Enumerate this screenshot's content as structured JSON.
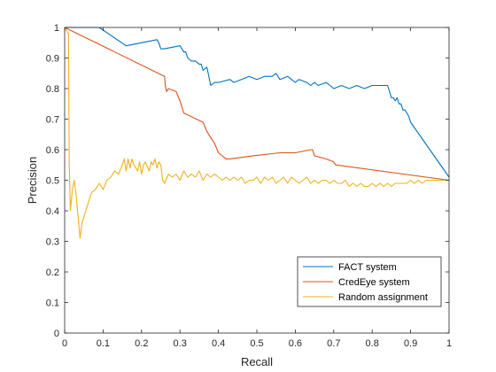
{
  "chart_data": {
    "type": "line",
    "title": "",
    "xlabel": "Recall",
    "ylabel": "Precision",
    "xlim": [
      0,
      1
    ],
    "ylim": [
      0,
      1
    ],
    "x_ticks": [
      0,
      0.1,
      0.2,
      0.3,
      0.4,
      0.5,
      0.6,
      0.7,
      0.8,
      0.9,
      1
    ],
    "x_tick_labels": [
      "0",
      "0.1",
      "0.2",
      "0.3",
      "0.4",
      "0.5",
      "0.6",
      "0.7",
      "0.8",
      "0.9",
      "1"
    ],
    "y_ticks": [
      0,
      0.1,
      0.2,
      0.3,
      0.4,
      0.5,
      0.6,
      0.7,
      0.8,
      0.9,
      1
    ],
    "y_tick_labels": [
      "0",
      "0.1",
      "0.2",
      "0.3",
      "0.4",
      "0.5",
      "0.6",
      "0.7",
      "0.8",
      "0.9",
      "1"
    ],
    "grid": false,
    "legend_position": "bottom-right",
    "series": [
      {
        "name": "FACT system",
        "color": "#0072BD",
        "x": [
          0,
          0.09,
          0.16,
          0.24,
          0.245,
          0.25,
          0.26,
          0.3,
          0.31,
          0.315,
          0.32,
          0.33,
          0.34,
          0.35,
          0.355,
          0.36,
          0.37,
          0.375,
          0.38,
          0.39,
          0.4,
          0.43,
          0.44,
          0.46,
          0.48,
          0.5,
          0.52,
          0.54,
          0.55,
          0.56,
          0.58,
          0.6,
          0.61,
          0.63,
          0.64,
          0.65,
          0.66,
          0.68,
          0.69,
          0.7,
          0.72,
          0.74,
          0.76,
          0.78,
          0.8,
          0.82,
          0.84,
          0.85,
          0.855,
          0.86,
          0.865,
          0.87,
          0.875,
          0.88,
          0.885,
          0.89,
          0.895,
          0.9,
          1.0
        ],
        "y": [
          1,
          1,
          0.94,
          0.96,
          0.95,
          0.93,
          0.93,
          0.94,
          0.92,
          0.92,
          0.9,
          0.89,
          0.89,
          0.88,
          0.88,
          0.86,
          0.87,
          0.84,
          0.81,
          0.82,
          0.82,
          0.83,
          0.82,
          0.83,
          0.84,
          0.83,
          0.84,
          0.84,
          0.85,
          0.83,
          0.84,
          0.82,
          0.83,
          0.82,
          0.81,
          0.82,
          0.81,
          0.82,
          0.81,
          0.8,
          0.81,
          0.8,
          0.81,
          0.8,
          0.81,
          0.81,
          0.81,
          0.77,
          0.77,
          0.76,
          0.77,
          0.75,
          0.75,
          0.73,
          0.73,
          0.72,
          0.71,
          0.69,
          0.51
        ]
      },
      {
        "name": "CredEye system",
        "color": "#D95319",
        "x": [
          0,
          0.26,
          0.262,
          0.265,
          0.27,
          0.29,
          0.3,
          0.31,
          0.36,
          0.37,
          0.38,
          0.39,
          0.4,
          0.42,
          0.43,
          0.49,
          0.56,
          0.6,
          0.64,
          0.645,
          0.65,
          0.68,
          0.7,
          0.705,
          1.0
        ],
        "y": [
          1,
          0.84,
          0.81,
          0.79,
          0.8,
          0.79,
          0.76,
          0.72,
          0.69,
          0.66,
          0.64,
          0.62,
          0.59,
          0.57,
          0.57,
          0.58,
          0.59,
          0.59,
          0.6,
          0.6,
          0.58,
          0.57,
          0.56,
          0.55,
          0.5
        ]
      },
      {
        "name": "Random assignment",
        "color": "#EDB120",
        "x": [
          0,
          0.01,
          0.012,
          0.015,
          0.02,
          0.025,
          0.03,
          0.035,
          0.04,
          0.045,
          0.05,
          0.06,
          0.07,
          0.08,
          0.09,
          0.1,
          0.11,
          0.12,
          0.13,
          0.14,
          0.15,
          0.155,
          0.16,
          0.165,
          0.17,
          0.175,
          0.18,
          0.19,
          0.195,
          0.2,
          0.205,
          0.21,
          0.22,
          0.225,
          0.23,
          0.235,
          0.24,
          0.245,
          0.25,
          0.255,
          0.26,
          0.27,
          0.28,
          0.29,
          0.3,
          0.31,
          0.32,
          0.33,
          0.34,
          0.35,
          0.36,
          0.37,
          0.38,
          0.39,
          0.4,
          0.41,
          0.42,
          0.43,
          0.44,
          0.45,
          0.46,
          0.47,
          0.48,
          0.49,
          0.5,
          0.51,
          0.52,
          0.53,
          0.54,
          0.55,
          0.56,
          0.57,
          0.58,
          0.59,
          0.6,
          0.61,
          0.62,
          0.63,
          0.64,
          0.65,
          0.66,
          0.67,
          0.68,
          0.69,
          0.7,
          0.71,
          0.72,
          0.73,
          0.74,
          0.75,
          0.76,
          0.77,
          0.78,
          0.79,
          0.8,
          0.81,
          0.82,
          0.83,
          0.84,
          0.85,
          0.86,
          0.87,
          0.88,
          0.89,
          0.9,
          0.91,
          0.92,
          0.93,
          0.94,
          0.95,
          0.96,
          0.97,
          0.98,
          0.99,
          1.0
        ],
        "y": [
          1,
          0.98,
          0.55,
          0.4,
          0.47,
          0.5,
          0.45,
          0.38,
          0.31,
          0.36,
          0.38,
          0.42,
          0.46,
          0.47,
          0.49,
          0.47,
          0.5,
          0.51,
          0.53,
          0.52,
          0.55,
          0.57,
          0.53,
          0.57,
          0.54,
          0.57,
          0.55,
          0.53,
          0.56,
          0.52,
          0.55,
          0.56,
          0.53,
          0.56,
          0.55,
          0.57,
          0.54,
          0.56,
          0.55,
          0.5,
          0.49,
          0.52,
          0.51,
          0.52,
          0.5,
          0.53,
          0.51,
          0.52,
          0.51,
          0.53,
          0.5,
          0.52,
          0.51,
          0.52,
          0.51,
          0.5,
          0.51,
          0.5,
          0.51,
          0.5,
          0.51,
          0.49,
          0.5,
          0.5,
          0.51,
          0.49,
          0.51,
          0.5,
          0.51,
          0.49,
          0.5,
          0.51,
          0.49,
          0.51,
          0.5,
          0.49,
          0.5,
          0.51,
          0.49,
          0.5,
          0.49,
          0.5,
          0.5,
          0.49,
          0.5,
          0.49,
          0.49,
          0.5,
          0.48,
          0.49,
          0.48,
          0.49,
          0.48,
          0.48,
          0.49,
          0.48,
          0.49,
          0.48,
          0.49,
          0.48,
          0.49,
          0.49,
          0.49,
          0.49,
          0.5,
          0.49,
          0.5,
          0.49,
          0.5,
          0.5,
          0.5,
          0.5,
          0.5,
          0.5,
          0.5
        ]
      }
    ]
  }
}
